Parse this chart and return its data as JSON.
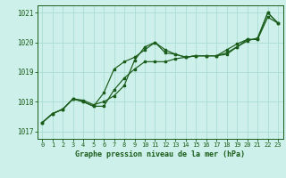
{
  "title": "Graphe pression niveau de la mer (hPa)",
  "bg_color": "#cef0ea",
  "grid_color": "#aaddd4",
  "line_color": "#1a5c1a",
  "xlim": [
    -0.5,
    23.5
  ],
  "ylim": [
    1016.75,
    1021.25
  ],
  "yticks": [
    1017,
    1018,
    1019,
    1020,
    1021
  ],
  "xticks": [
    0,
    1,
    2,
    3,
    4,
    5,
    6,
    7,
    8,
    9,
    10,
    11,
    12,
    13,
    14,
    15,
    16,
    17,
    18,
    19,
    20,
    21,
    22,
    23
  ],
  "series": [
    [
      1017.3,
      1017.6,
      1017.75,
      1018.1,
      1018.05,
      1017.9,
      1018.0,
      1018.2,
      1018.55,
      1019.4,
      1019.85,
      1020.0,
      1019.75,
      1019.6,
      1019.5,
      1019.55,
      1019.55,
      1019.55,
      1019.6,
      1019.85,
      1020.1,
      1020.1,
      1020.85,
      1020.65
    ],
    [
      1017.3,
      1017.6,
      1017.75,
      1018.1,
      1018.0,
      1017.85,
      1017.85,
      1018.4,
      1018.8,
      1019.1,
      1019.35,
      1019.35,
      1019.35,
      1019.45,
      1019.5,
      1019.55,
      1019.55,
      1019.55,
      1019.65,
      1019.85,
      1020.05,
      1020.15,
      1021.0,
      1020.65
    ],
    [
      1017.3,
      1017.6,
      1017.75,
      1018.1,
      1018.0,
      1017.85,
      1018.3,
      1019.1,
      1019.35,
      1019.5,
      1019.75,
      1020.0,
      1019.65,
      1019.6,
      1019.5,
      1019.55,
      1019.55,
      1019.55,
      1019.75,
      1019.95,
      1020.1,
      1020.1,
      1021.0,
      1020.65
    ]
  ],
  "title_fontsize": 6.0,
  "tick_fontsize": 5.0
}
